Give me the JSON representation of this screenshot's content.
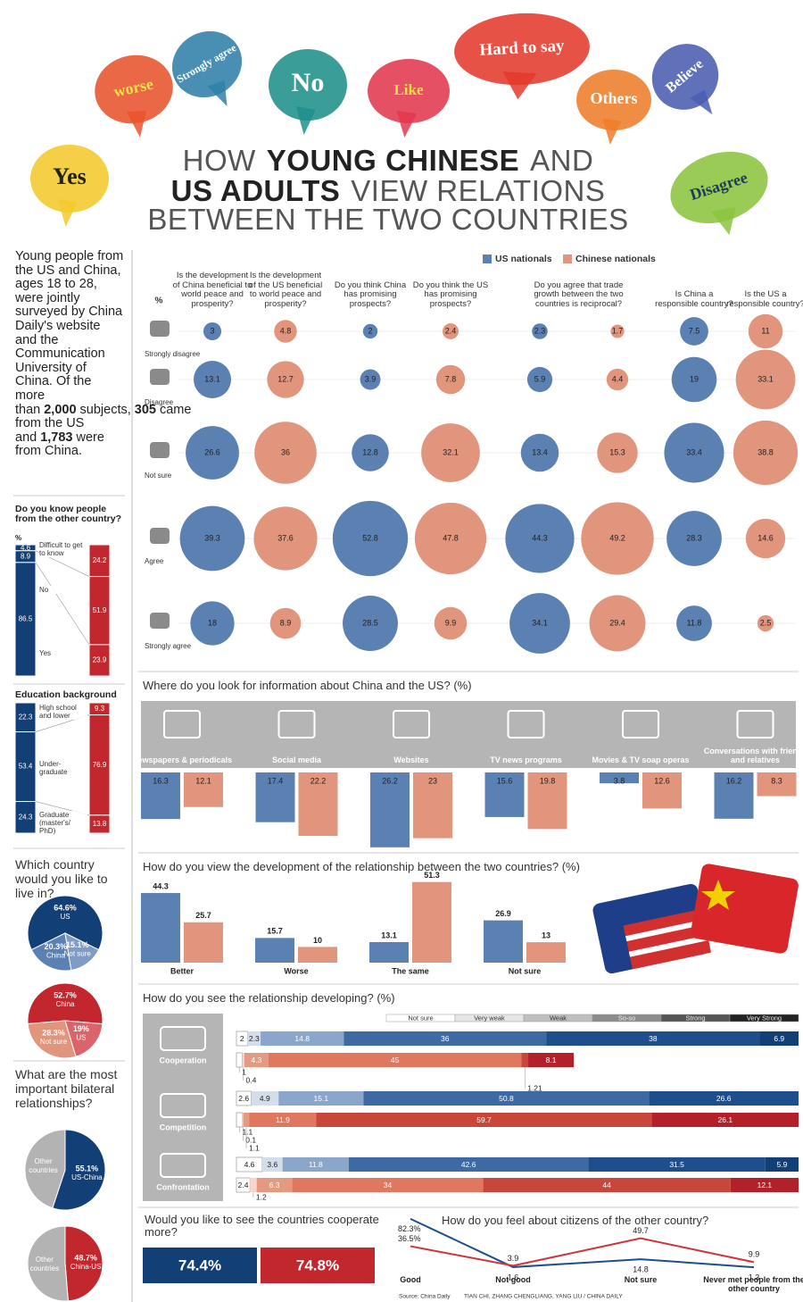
{
  "header": {
    "bubbles": [
      {
        "text": "worse",
        "color": "#e8532c",
        "text_color": "#f7e04a"
      },
      {
        "text": "Strongly agree",
        "color": "#2f7fa8",
        "text_color": "#ffffff"
      },
      {
        "text": "No",
        "color": "#1f8f8a",
        "text_color": "#ffffff"
      },
      {
        "text": "Like",
        "color": "#e2384f",
        "text_color": "#f7e04a"
      },
      {
        "text": "Hard to say",
        "color": "#e33a2c",
        "text_color": "#ffffff"
      },
      {
        "text": "Others",
        "color": "#ee7d2a",
        "text_color": "#ffffff"
      },
      {
        "text": "Believe",
        "color": "#4a5db0",
        "text_color": "#ffffff"
      },
      {
        "text": "Yes",
        "color": "#f4c92e",
        "text_color": "#222222"
      },
      {
        "text": "Disagree",
        "color": "#8cc43f",
        "text_color": "#1f3a5a"
      }
    ],
    "title": [
      [
        {
          "text": "HOW",
          "bold": false
        },
        {
          "text": "YOUNG CHINESE",
          "bold": true
        },
        {
          "text": "AND",
          "bold": false
        }
      ],
      [
        {
          "text": "US ADULTS",
          "bold": true
        },
        {
          "text": "VIEW RELATIONS",
          "bold": false
        }
      ],
      [
        {
          "text": "BETWEEN THE TWO COUNTRIES",
          "bold": false
        }
      ]
    ]
  },
  "intro": [
    {
      "text": "Young people from the US and China, ages 18 to 28, were jointly surveyed by China Daily's website and the Communication University of China. Of the more than",
      "bold": false
    },
    {
      "text": "2,000",
      "bold": true
    },
    {
      "text": "subjects,",
      "bold": false
    },
    {
      "text": "305",
      "bold": true
    },
    {
      "text": "came from the US and",
      "bold": false
    },
    {
      "text": "1,783",
      "bold": true
    },
    {
      "text": "were from China.",
      "bold": false
    }
  ],
  "chart_data": [
    {
      "type": "bubble",
      "unit": "%",
      "rows": [
        "Strongly disagree",
        "Disagree",
        "Not sure",
        "Agree",
        "Strongly agree"
      ],
      "questions": [
        "Is the development of China beneficial to world peace and prosperity?",
        "Is the development of the US beneficial to world peace and prosperity?",
        "Do you think China has promising prospects?",
        "Do you think the US has promising prospects?",
        "Do you agree that trade growth between the two countries is reciprocal?",
        "Is China a responsible country?",
        "Is the US a responsible country?"
      ],
      "series": [
        {
          "name": "US nationals",
          "color": "#5b80b2",
          "values": [
            [
              3,
              13.1,
              26.6,
              39.3,
              18
            ],
            null,
            [
              2,
              3.9,
              12.8,
              52.8,
              28.5
            ],
            null,
            [
              2.3,
              5.9,
              13.4,
              44.3,
              34.1
            ],
            [
              7.5,
              19,
              33.4,
              28.3,
              11.8
            ],
            null
          ]
        },
        {
          "name": "Chinese nationals",
          "color": "#e0957c",
          "values": [
            null,
            [
              4.8,
              12.7,
              36,
              37.6,
              8.9
            ],
            null,
            [
              2.4,
              7.8,
              32.1,
              47.8,
              9.9
            ],
            [
              1.7,
              4.4,
              15.3,
              49.2,
              29.4
            ],
            null,
            [
              11,
              33.1,
              38.8,
              14.6,
              2.5
            ]
          ]
        }
      ]
    },
    {
      "type": "stacked_column",
      "title": "Do you know people from the other country?",
      "unit": "%",
      "categories": [
        "Difficult to get to know",
        "No",
        "Yes"
      ],
      "series": [
        {
          "color": "#123f75",
          "values": [
            4.6,
            8.9,
            86.5
          ]
        },
        {
          "color": "#c1272d",
          "values": [
            24.2,
            51.9,
            23.9
          ]
        }
      ]
    },
    {
      "type": "stacked_column",
      "title": "Education background",
      "categories": [
        "High school and lower",
        "Under-graduate",
        "Graduate (master's/ PhD)"
      ],
      "series": [
        {
          "color": "#123f75",
          "values": [
            22.3,
            53.4,
            24.3
          ]
        },
        {
          "color": "#c1272d",
          "values": [
            9.3,
            76.9,
            13.8
          ]
        }
      ]
    },
    {
      "type": "pie",
      "title": "Which country would you like to live in?",
      "categories": [
        "US",
        "China",
        "Not sure"
      ],
      "values": [
        64.6,
        20.3,
        15.1
      ],
      "value_labels": [
        "64.6%",
        "20.3%",
        "15.1%"
      ],
      "colors": [
        "#123f75",
        "#5b80b2",
        "#7e9cc6"
      ]
    },
    {
      "type": "pie",
      "categories": [
        "China",
        "Not sure",
        "US"
      ],
      "values": [
        52.7,
        28.3,
        19
      ],
      "value_labels": [
        "52.7%",
        "28.3%",
        "19%"
      ],
      "colors": [
        "#c1272d",
        "#e0957c",
        "#d9646a"
      ]
    },
    {
      "type": "pie",
      "title": "What are the most important bilateral relationships?",
      "categories": [
        "US-China",
        "Other countries"
      ],
      "values": [
        55.1,
        44.9
      ],
      "value_labels": [
        "55.1%",
        null
      ],
      "colors": [
        "#123f75",
        "#b3b3b3"
      ]
    },
    {
      "type": "pie",
      "categories": [
        "China-US",
        "Other countries"
      ],
      "values": [
        48.7,
        51.3
      ],
      "value_labels": [
        "48.7%",
        null
      ],
      "colors": [
        "#c1272d",
        "#b3b3b3"
      ]
    },
    {
      "type": "bar",
      "title": "Where do you look for information about China and the US? (%)",
      "categories": [
        "Newspapers & periodicals",
        "Social media",
        "Websites",
        "TV news programs",
        "Movies & TV soap operas",
        "Conversations with friends and relatives"
      ],
      "series": [
        {
          "color": "#5b80b2",
          "values": [
            16.3,
            17.4,
            26.2,
            15.6,
            3.8,
            16.2
          ]
        },
        {
          "color": "#e0957c",
          "values": [
            12.1,
            22.2,
            23,
            19.8,
            12.6,
            8.3
          ]
        }
      ]
    },
    {
      "type": "bar",
      "title": "How do you view the development of the relationship between the two countries? (%)",
      "categories": [
        "Better",
        "Worse",
        "The same",
        "Not sure"
      ],
      "series": [
        {
          "color": "#5b80b2",
          "values": [
            44.3,
            15.7,
            13.1,
            26.9
          ]
        },
        {
          "color": "#e0957c",
          "values": [
            25.7,
            10,
            51.3,
            13
          ]
        }
      ]
    },
    {
      "type": "stacked_bar",
      "title": "How do you see the relationship developing? (%)",
      "levels": [
        "Not sure",
        "Very weak",
        "Weak",
        "So-so",
        "Strong",
        "Very Strong"
      ],
      "level_colors": [
        "#ffffff",
        "#e6e6e6",
        "#bfbfbf",
        "#8c8c8c",
        "#555555",
        "#222222"
      ],
      "categories": [
        "Cooperation",
        "Competition",
        "Confrontation"
      ],
      "series": [
        {
          "colors": [
            "#ffffff",
            "#d4deeb",
            "#8aa6cb",
            "#3e6aa3",
            "#1e4e8c",
            "#123f75"
          ],
          "values": [
            [
              2,
              2.3,
              14.8,
              36,
              38,
              6.9
            ],
            [
              2.6,
              4.9,
              15.1,
              50.8,
              26.6,
              null
            ],
            [
              4.6,
              3.6,
              11.8,
              42.6,
              31.5,
              5.9
            ]
          ]
        },
        {
          "colors": [
            "#ffffff",
            "#f6d6cc",
            "#e39a80",
            "#e0775f",
            "#c9463a",
            "#b3202a"
          ],
          "values": [
            [
              1,
              0.4,
              4.3,
              45,
              1.21,
              8.1
            ],
            [
              1.1,
              0.1,
              1.1,
              11.9,
              59.7,
              26.1
            ],
            [
              2.4,
              1.2,
              6.3,
              34,
              44,
              12.1
            ]
          ]
        }
      ]
    },
    {
      "type": "tile",
      "title": "Would you like to see the countries cooperate more?",
      "values": [
        74.4,
        74.8
      ],
      "value_labels": [
        "74.4%",
        "74.8%"
      ],
      "colors": [
        "#123f75",
        "#c1272d"
      ]
    },
    {
      "type": "line",
      "title": "How do you feel about citizens of the other country?",
      "categories": [
        "Good",
        "Not good",
        "Not sure",
        "Never met people from the other country"
      ],
      "series": [
        {
          "color": "#1e4e8c",
          "values": [
            82.3,
            1.6,
            14.8,
            1.3
          ],
          "value_labels": [
            "82.3%",
            "1.6",
            "14.8",
            "1.3"
          ]
        },
        {
          "color": "#d0343a",
          "values": [
            36.5,
            3.9,
            49.7,
            9.9
          ],
          "value_labels": [
            "36.5%",
            "3.9",
            "49.7",
            "9.9"
          ]
        }
      ]
    }
  ],
  "footer": {
    "source": "Source: China Daily",
    "credit": "TIAN CHI, ZHANG CHENGLIANG, YANG LIU / CHINA DAILY"
  }
}
